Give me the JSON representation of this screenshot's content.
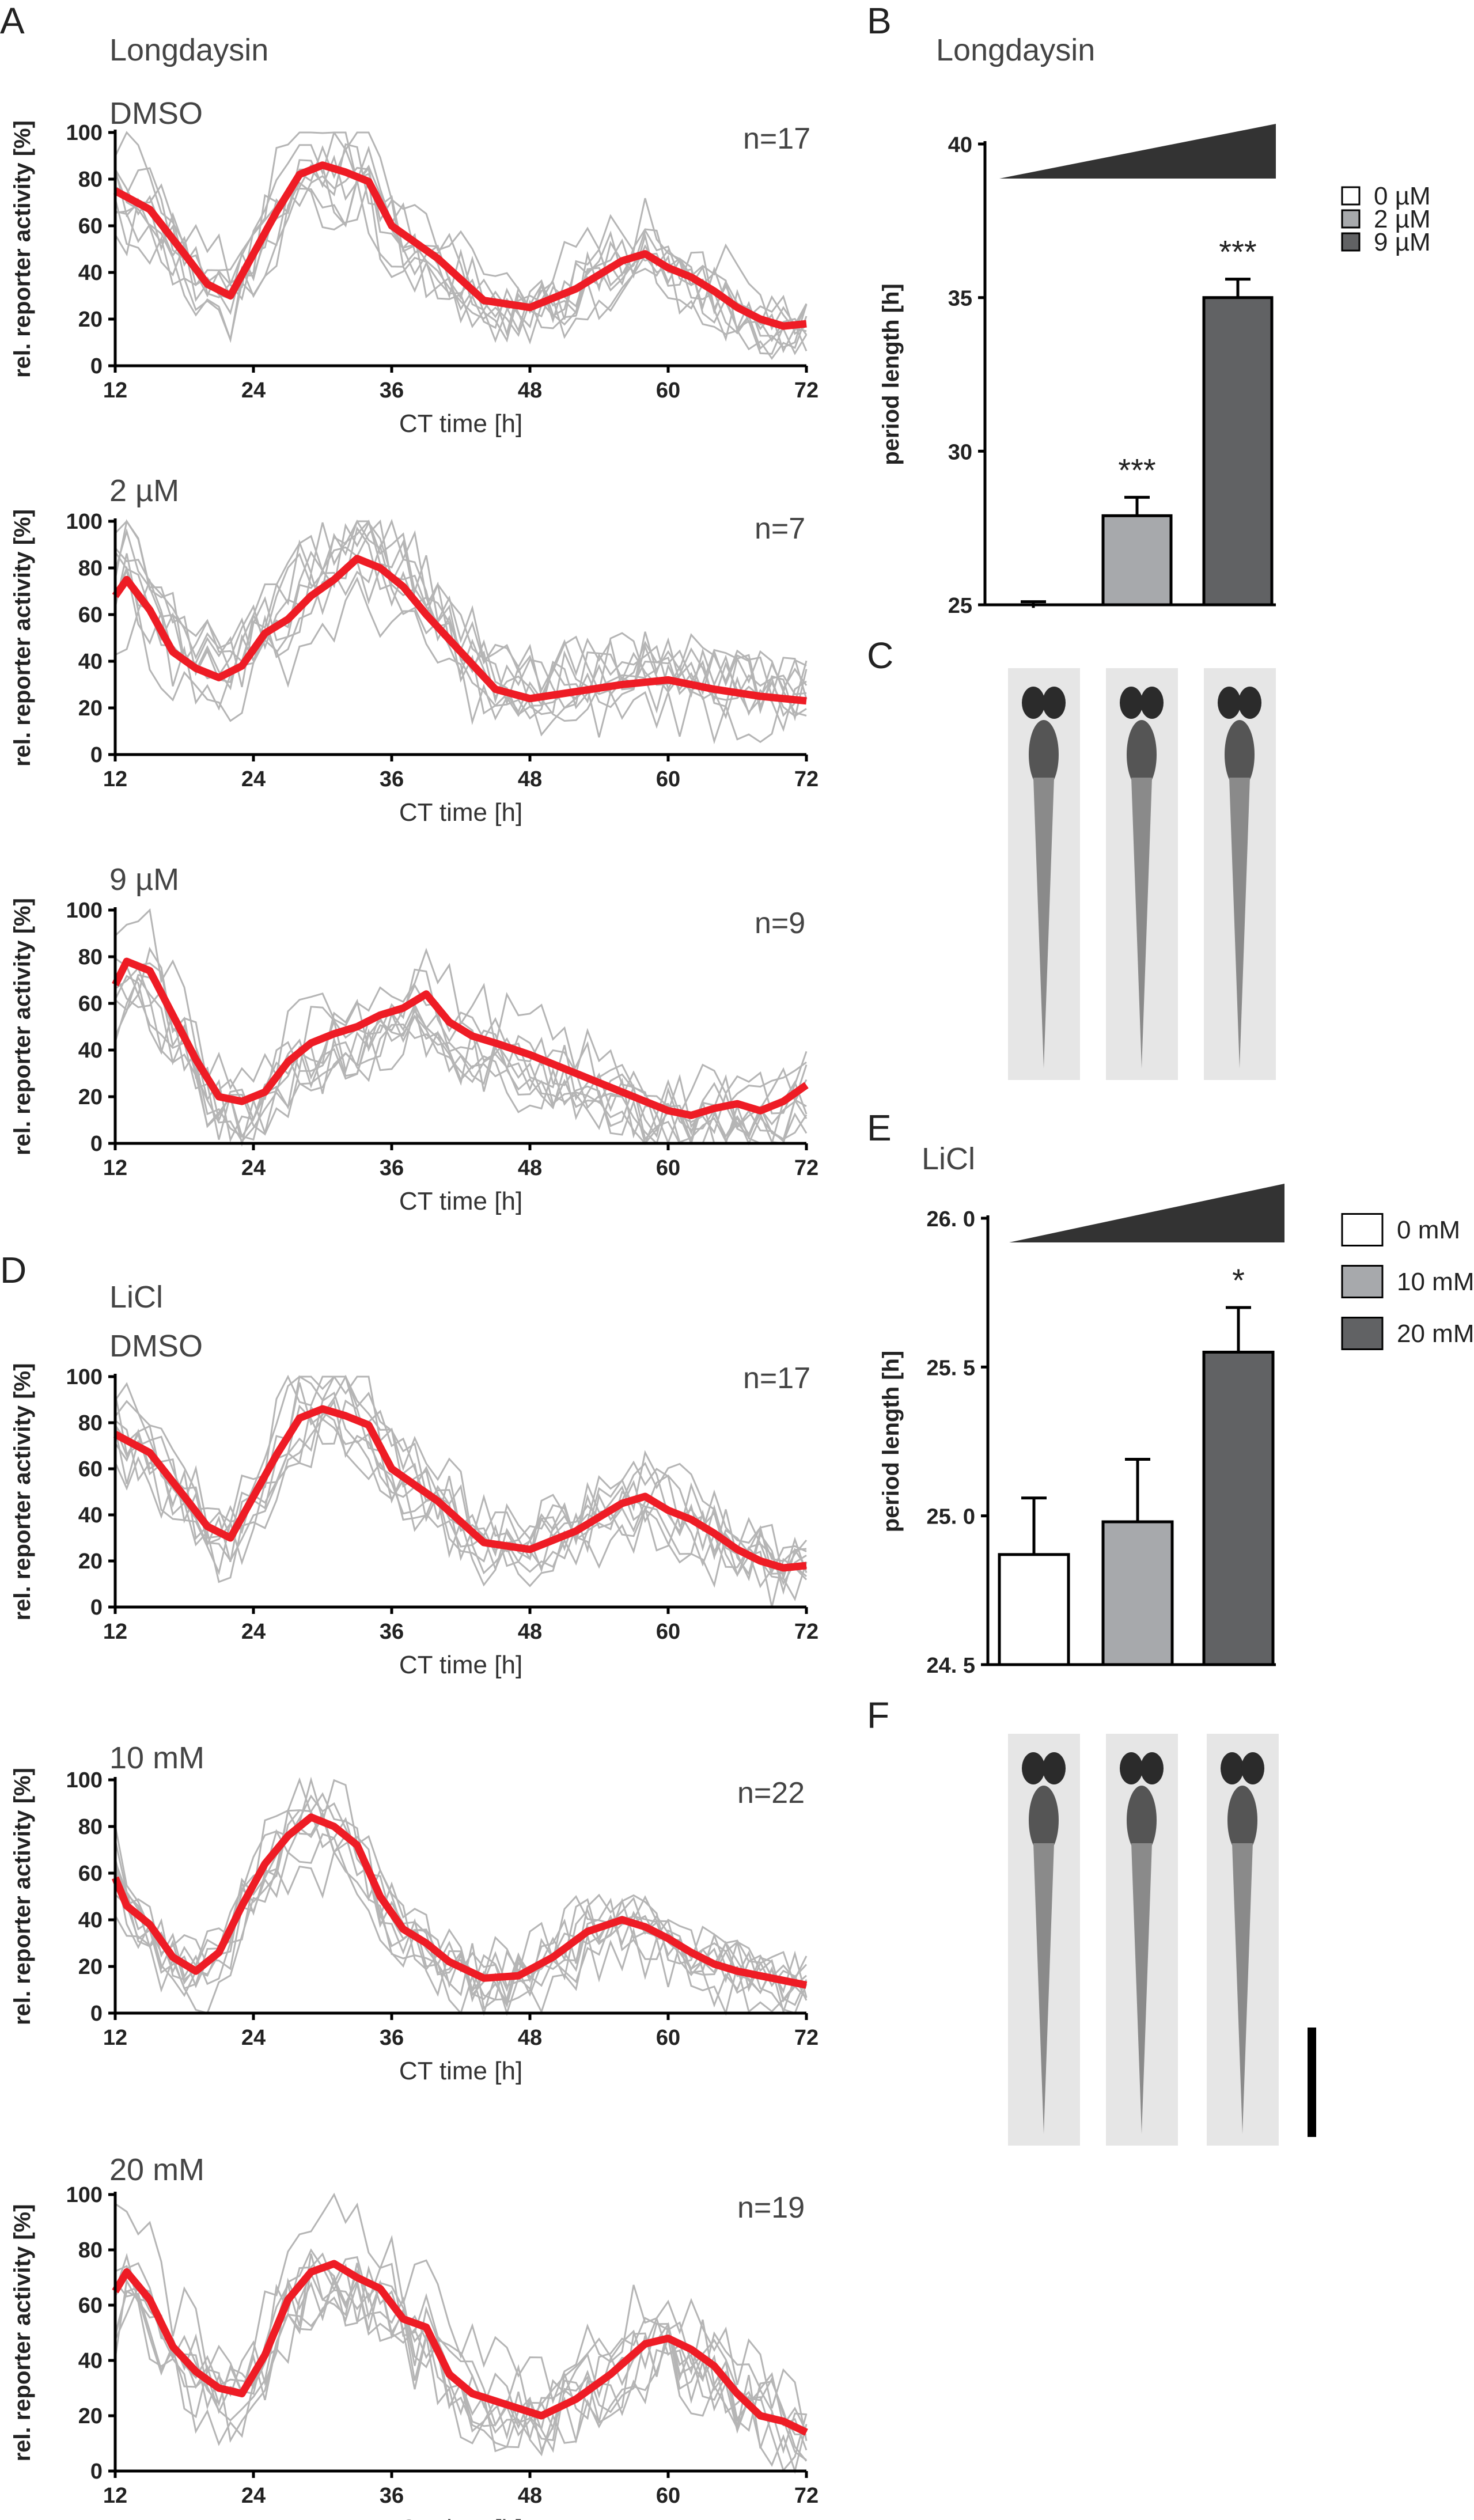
{
  "panels": {
    "A": "A",
    "B": "B",
    "C": "C",
    "D": "D",
    "E": "E",
    "F": "F"
  },
  "headings": {
    "longdaysin_A": "Longdaysin",
    "longdaysin_B": "Longdaysin",
    "licl_D": "LiCl",
    "licl_E": "LiCl"
  },
  "colors": {
    "mean": "#ee1c25",
    "individual": "#b5b5b5",
    "bar_light": "#ffffff",
    "bar_mid": "#a7a9ac",
    "bar_dark": "#616264"
  },
  "chart_data": [
    {
      "id": "A1",
      "type": "line",
      "condition": "DMSO",
      "n": "n=17",
      "xlabel": "CT time [h]",
      "ylabel": "rel. reporter activity [%]",
      "xlim": [
        12,
        72
      ],
      "ylim": [
        0,
        100
      ],
      "xticks": [
        12,
        24,
        36,
        48,
        60,
        72
      ],
      "yticks": [
        0,
        20,
        40,
        60,
        80,
        100
      ],
      "x": [
        12,
        15,
        18,
        20,
        22,
        24,
        26,
        28,
        30,
        32,
        34,
        36,
        40,
        44,
        48,
        52,
        56,
        58,
        60,
        62,
        64,
        66,
        68,
        70,
        72
      ],
      "mean": [
        75,
        67,
        48,
        35,
        30,
        48,
        66,
        82,
        86,
        83,
        79,
        60,
        46,
        28,
        25,
        33,
        45,
        48,
        42,
        38,
        32,
        25,
        20,
        17,
        18
      ]
    },
    {
      "id": "A2",
      "type": "line",
      "condition": "2 µM",
      "n": "n=7",
      "xlabel": "CT time [h]",
      "ylabel": "rel. reporter activity [%]",
      "xlim": [
        12,
        72
      ],
      "ylim": [
        0,
        100
      ],
      "xticks": [
        12,
        24,
        36,
        48,
        60,
        72
      ],
      "yticks": [
        0,
        20,
        40,
        60,
        80,
        100
      ],
      "x": [
        12,
        13,
        15,
        17,
        19,
        21,
        23,
        25,
        27,
        29,
        31,
        33,
        35,
        37,
        39,
        42,
        45,
        48,
        52,
        56,
        60,
        64,
        68,
        72
      ],
      "mean": [
        68,
        75,
        62,
        44,
        37,
        33,
        38,
        52,
        58,
        68,
        75,
        84,
        80,
        72,
        60,
        44,
        28,
        24,
        27,
        30,
        32,
        28,
        25,
        23
      ]
    },
    {
      "id": "A3",
      "type": "line",
      "condition": "9 µM",
      "n": "n=9",
      "xlabel": "CT time [h]",
      "ylabel": "rel. reporter activity [%]",
      "xlim": [
        12,
        72
      ],
      "ylim": [
        0,
        100
      ],
      "xticks": [
        12,
        24,
        36,
        48,
        60,
        72
      ],
      "yticks": [
        0,
        20,
        40,
        60,
        80,
        100
      ],
      "x": [
        12,
        13,
        15,
        17,
        19,
        21,
        23,
        25,
        27,
        29,
        31,
        33,
        35,
        37,
        39,
        41,
        43,
        45,
        48,
        52,
        56,
        60,
        62,
        64,
        66,
        68,
        70,
        72
      ],
      "mean": [
        68,
        78,
        74,
        55,
        36,
        20,
        18,
        22,
        35,
        43,
        47,
        50,
        55,
        58,
        64,
        52,
        46,
        43,
        38,
        30,
        22,
        14,
        12,
        15,
        17,
        14,
        18,
        25
      ]
    },
    {
      "id": "D1",
      "type": "line",
      "condition": "DMSO",
      "n": "n=17",
      "xlabel": "CT time [h]",
      "ylabel": "rel. reporter activity [%]",
      "xlim": [
        12,
        72
      ],
      "ylim": [
        0,
        100
      ],
      "xticks": [
        12,
        24,
        36,
        48,
        60,
        72
      ],
      "yticks": [
        0,
        20,
        40,
        60,
        80,
        100
      ],
      "x": [
        12,
        15,
        18,
        20,
        22,
        24,
        26,
        28,
        30,
        32,
        34,
        36,
        40,
        44,
        48,
        52,
        56,
        58,
        60,
        62,
        64,
        66,
        68,
        70,
        72
      ],
      "mean": [
        75,
        67,
        48,
        35,
        30,
        48,
        66,
        82,
        86,
        83,
        79,
        60,
        46,
        28,
        25,
        33,
        45,
        48,
        42,
        38,
        32,
        25,
        20,
        17,
        18
      ]
    },
    {
      "id": "D2",
      "type": "line",
      "condition": "10 mM",
      "n": "n=22",
      "xlabel": "CT time [h]",
      "ylabel": "rel. reporter activity [%]",
      "xlim": [
        12,
        72
      ],
      "ylim": [
        0,
        100
      ],
      "xticks": [
        12,
        24,
        36,
        48,
        60,
        72
      ],
      "yticks": [
        0,
        20,
        40,
        60,
        80,
        100
      ],
      "x": [
        12,
        13,
        15,
        17,
        19,
        21,
        23,
        25,
        27,
        29,
        31,
        33,
        35,
        37,
        39,
        41,
        44,
        47,
        50,
        53,
        56,
        58,
        60,
        62,
        64,
        66,
        68,
        70,
        72
      ],
      "mean": [
        58,
        46,
        38,
        24,
        18,
        26,
        46,
        64,
        76,
        84,
        80,
        72,
        50,
        36,
        30,
        22,
        15,
        16,
        24,
        35,
        40,
        37,
        32,
        26,
        21,
        18,
        16,
        14,
        12
      ]
    },
    {
      "id": "D3",
      "type": "line",
      "condition": "20 mM",
      "n": "n=19",
      "xlabel": "CT time [h]",
      "ylabel": "rel. reporter activity [%]",
      "xlim": [
        12,
        72
      ],
      "ylim": [
        0,
        100
      ],
      "xticks": [
        12,
        24,
        36,
        48,
        60,
        72
      ],
      "yticks": [
        0,
        20,
        40,
        60,
        80,
        100
      ],
      "x": [
        12,
        13,
        15,
        17,
        19,
        21,
        23,
        25,
        27,
        29,
        31,
        33,
        35,
        37,
        39,
        41,
        43,
        46,
        49,
        52,
        55,
        58,
        60,
        62,
        64,
        66,
        68,
        70,
        72
      ],
      "mean": [
        65,
        72,
        62,
        45,
        36,
        30,
        28,
        42,
        62,
        72,
        75,
        70,
        66,
        55,
        52,
        35,
        28,
        24,
        20,
        26,
        35,
        46,
        48,
        44,
        38,
        28,
        20,
        18,
        14
      ]
    },
    {
      "id": "B",
      "type": "bar",
      "ylabel": "period length [h]",
      "ylim": [
        25,
        40
      ],
      "yticks": [
        25,
        30,
        35,
        40
      ],
      "legend": [
        "0 µM",
        "2 µM",
        "9 µM"
      ],
      "values": [
        24.9,
        27.9,
        35.0
      ],
      "errors": [
        0.2,
        0.6,
        0.6
      ],
      "significance": [
        "",
        "***",
        "***"
      ]
    },
    {
      "id": "E",
      "type": "bar",
      "ylabel": "period length [h]",
      "ylim": [
        24.5,
        26.0
      ],
      "yticks": [
        "24. 5",
        "25. 0",
        "25. 5",
        "26. 0"
      ],
      "ytick_values": [
        24.5,
        25.0,
        25.5,
        26.0
      ],
      "legend": [
        "0 mM",
        "10 mM",
        "20 mM"
      ],
      "values": [
        24.87,
        24.98,
        25.55
      ],
      "errors": [
        0.19,
        0.21,
        0.15
      ],
      "significance": [
        "",
        "",
        "*"
      ]
    }
  ]
}
